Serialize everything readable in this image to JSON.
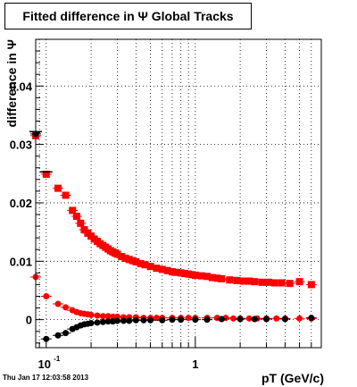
{
  "title": "Fitted difference in Ψ   Global Tracks",
  "footer": "Thu Jan 17 12:03:58 2013",
  "chart_data": {
    "type": "scatter",
    "title": "Fitted difference in Ψ   Global Tracks",
    "xlabel": "pT (GeV/c)",
    "ylabel": "difference in Ψ",
    "x_scale": "log",
    "xlim": [
      0.085,
      7.0
    ],
    "ylim": [
      -0.0048,
      0.048
    ],
    "x_tick_labels": [
      {
        "value": 0.1,
        "base": "10",
        "exp": "-1"
      },
      {
        "value": 1,
        "label": "1"
      }
    ],
    "y_ticks": [
      0,
      0.01,
      0.02,
      0.03,
      0.04
    ],
    "y_tick_labels": [
      "0",
      "0.01",
      "0.02",
      "0.03",
      "0.04"
    ],
    "grid": true,
    "series": [
      {
        "color": "#ff0000",
        "marker": "square",
        "points": [
          [
            0.085,
            0.0315
          ],
          [
            0.1,
            0.0249
          ],
          [
            0.12,
            0.0225
          ],
          [
            0.135,
            0.0213
          ],
          [
            0.15,
            0.0187
          ],
          [
            0.16,
            0.0177
          ],
          [
            0.17,
            0.0165
          ],
          [
            0.18,
            0.0154
          ],
          [
            0.19,
            0.0148
          ],
          [
            0.2,
            0.0143
          ],
          [
            0.21,
            0.0138
          ],
          [
            0.22,
            0.0134
          ],
          [
            0.23,
            0.013
          ],
          [
            0.24,
            0.0127
          ],
          [
            0.25,
            0.0124
          ],
          [
            0.26,
            0.0121
          ],
          [
            0.27,
            0.0118
          ],
          [
            0.28,
            0.0116
          ],
          [
            0.29,
            0.0114
          ],
          [
            0.3,
            0.0112
          ],
          [
            0.32,
            0.0108
          ],
          [
            0.34,
            0.0105
          ],
          [
            0.36,
            0.0103
          ],
          [
            0.38,
            0.0101
          ],
          [
            0.4,
            0.0099
          ],
          [
            0.43,
            0.0096
          ],
          [
            0.46,
            0.0094
          ],
          [
            0.5,
            0.0091
          ],
          [
            0.55,
            0.0088
          ],
          [
            0.6,
            0.0086
          ],
          [
            0.65,
            0.0084
          ],
          [
            0.7,
            0.0082
          ],
          [
            0.75,
            0.0081
          ],
          [
            0.8,
            0.008
          ],
          [
            0.85,
            0.0079
          ],
          [
            0.9,
            0.0078
          ],
          [
            0.95,
            0.0077
          ],
          [
            1.0,
            0.0076
          ],
          [
            1.1,
            0.0075
          ],
          [
            1.2,
            0.0074
          ],
          [
            1.3,
            0.0072
          ],
          [
            1.4,
            0.0071
          ],
          [
            1.5,
            0.007
          ],
          [
            1.7,
            0.0068
          ],
          [
            1.9,
            0.0067
          ],
          [
            2.1,
            0.0066
          ],
          [
            2.3,
            0.0066
          ],
          [
            2.5,
            0.0065
          ],
          [
            2.8,
            0.0064
          ],
          [
            3.1,
            0.0064
          ],
          [
            3.4,
            0.0063
          ],
          [
            3.8,
            0.0063
          ],
          [
            4.3,
            0.0062
          ],
          [
            5.0,
            0.0065
          ],
          [
            6.0,
            0.006
          ]
        ]
      },
      {
        "color": "#ff0000",
        "marker": "circle",
        "points": [
          [
            0.085,
            0.0073
          ],
          [
            0.1,
            0.004
          ],
          [
            0.12,
            0.0027
          ],
          [
            0.135,
            0.0021
          ],
          [
            0.15,
            0.0016
          ],
          [
            0.16,
            0.0013
          ],
          [
            0.17,
            0.0011
          ],
          [
            0.18,
            0.001
          ],
          [
            0.19,
            0.0009
          ],
          [
            0.2,
            0.0008
          ],
          [
            0.22,
            0.0007
          ],
          [
            0.24,
            0.0006
          ],
          [
            0.26,
            0.0006
          ],
          [
            0.28,
            0.0005
          ],
          [
            0.3,
            0.0005
          ],
          [
            0.33,
            0.0004
          ],
          [
            0.36,
            0.0004
          ],
          [
            0.4,
            0.0004
          ],
          [
            0.45,
            0.0003
          ],
          [
            0.5,
            0.0003
          ],
          [
            0.55,
            0.0003
          ],
          [
            0.6,
            0.0003
          ],
          [
            0.7,
            0.0003
          ],
          [
            0.8,
            0.0003
          ],
          [
            0.9,
            0.0003
          ],
          [
            1.0,
            0.0003
          ],
          [
            1.2,
            0.0003
          ],
          [
            1.4,
            0.0003
          ],
          [
            1.6,
            0.0003
          ],
          [
            1.8,
            0.0002
          ],
          [
            2.0,
            0.0002
          ],
          [
            2.3,
            0.0002
          ],
          [
            2.6,
            0.0002
          ],
          [
            3.0,
            0.0002
          ],
          [
            3.5,
            0.0002
          ],
          [
            4.0,
            0.0002
          ],
          [
            5.0,
            0.0002
          ],
          [
            6.0,
            0.0002
          ]
        ]
      },
      {
        "color": "#000000",
        "marker": "circle",
        "points": [
          [
            0.085,
            0.0318
          ],
          [
            0.1,
            -0.0033
          ],
          [
            0.12,
            -0.0027
          ],
          [
            0.135,
            -0.0023
          ],
          [
            0.15,
            -0.0016
          ],
          [
            0.16,
            -0.0013
          ],
          [
            0.17,
            -0.001
          ],
          [
            0.18,
            -0.0008
          ],
          [
            0.19,
            -0.0007
          ],
          [
            0.2,
            -0.0006
          ],
          [
            0.22,
            -0.0005
          ],
          [
            0.24,
            -0.0004
          ],
          [
            0.26,
            -0.0003
          ],
          [
            0.28,
            -0.0003
          ],
          [
            0.3,
            -0.0002
          ],
          [
            0.33,
            -0.0002
          ],
          [
            0.36,
            -0.0002
          ],
          [
            0.4,
            -0.0001
          ],
          [
            0.45,
            -0.0001
          ],
          [
            0.5,
            -0.0001
          ],
          [
            0.6,
            -0.0001
          ],
          [
            0.7,
            0.0
          ],
          [
            0.8,
            0.0
          ],
          [
            1.0,
            0.0
          ],
          [
            1.2,
            0.0
          ],
          [
            1.5,
            0.0001
          ],
          [
            2.0,
            0.0001
          ],
          [
            2.5,
            0.0001
          ],
          [
            3.0,
            0.0001
          ],
          [
            4.0,
            0.0001
          ],
          [
            6.0,
            0.0003
          ]
        ]
      },
      {
        "color": "#000000",
        "marker": "hline",
        "points": [
          [
            0.1,
            0.0253
          ],
          [
            0.085,
            0.0322
          ]
        ]
      }
    ]
  }
}
